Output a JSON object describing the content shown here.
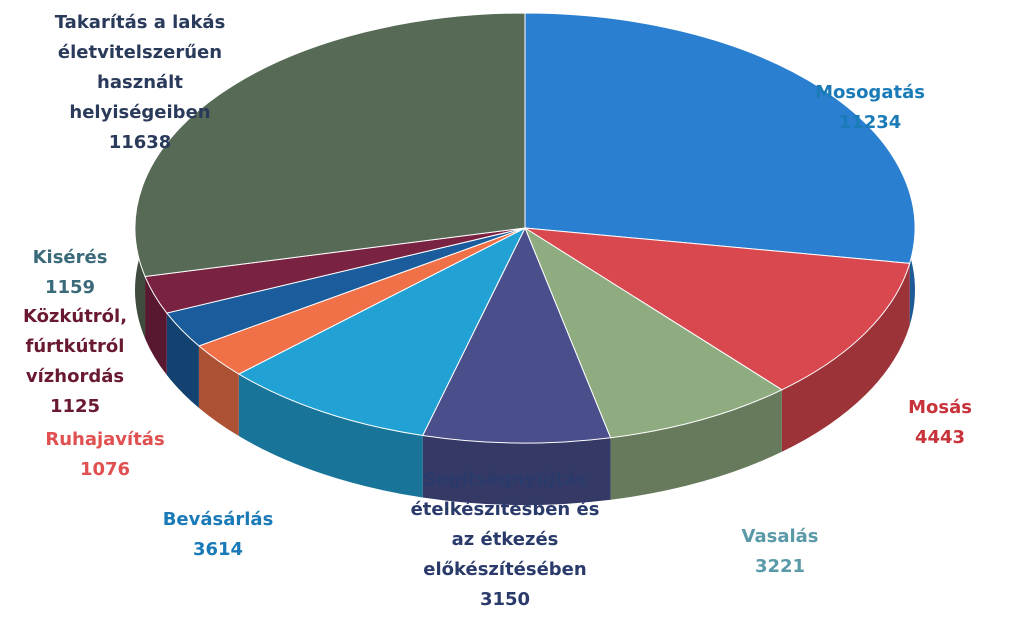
{
  "chart_data": {
    "type": "pie",
    "categories": [
      "Mosogatás",
      "Mosás",
      "Vasalás",
      "Segítségnyújtás\nételkészítésben és\naz étkezés\nelőkészítésében",
      "Bevásárlás",
      "Ruhajavítás",
      "Közkútról,\nfúrtkútról\nvízhordás",
      "Kisérés",
      "Takarítás a lakás\néletvitelszerűen\nhasznált\nhelyiségeiben"
    ],
    "values": [
      11234,
      4443,
      3221,
      3150,
      3614,
      1076,
      1125,
      1159,
      11638
    ],
    "colors": [
      "#2a7fd0",
      "#d9474f",
      "#8fab80",
      "#4a4f8c",
      "#22a2d4",
      "#f07048",
      "#1a5c9c",
      "#7a2242",
      "#566a56"
    ],
    "label_colors": [
      "#1a7bb8",
      "#c8323a",
      "#5a9aa8",
      "#2a3a6a",
      "#1a7ab8",
      "#e05050",
      "#6a1a30",
      "#3a6a7a",
      "#2a3a5a"
    ]
  }
}
